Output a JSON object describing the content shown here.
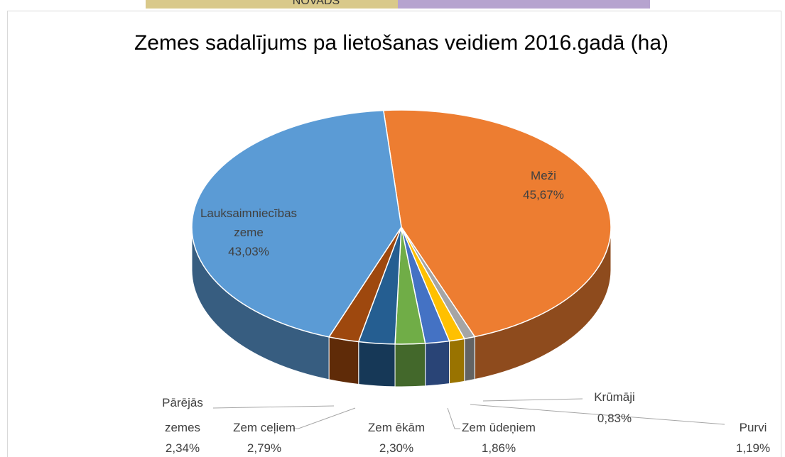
{
  "header_fragment": "NOVADS",
  "chart_data": {
    "type": "pie",
    "title": "Zemes sadalījums pa lietošanas veidiem 2016.gadā (ha)",
    "categories": [
      "Meži",
      "Krūmāji",
      "Purvi",
      "Zem ūdeņiem",
      "Zem ēkām",
      "Zem ceļiem",
      "Pārējās zemes",
      "Lauksaimniecības zeme"
    ],
    "values": [
      45.67,
      0.83,
      1.19,
      1.86,
      2.3,
      2.79,
      2.34,
      43.03
    ],
    "value_labels": [
      "45,67%",
      "0,83%",
      "1,19%",
      "1,86%",
      "2,30%",
      "2,79%",
      "2,34%",
      "43,03%"
    ],
    "colors": [
      "#ed7d31",
      "#a5a5a5",
      "#ffc000",
      "#4472c4",
      "#70ad47",
      "#255e91",
      "#9e480e",
      "#5b9bd5"
    ]
  }
}
